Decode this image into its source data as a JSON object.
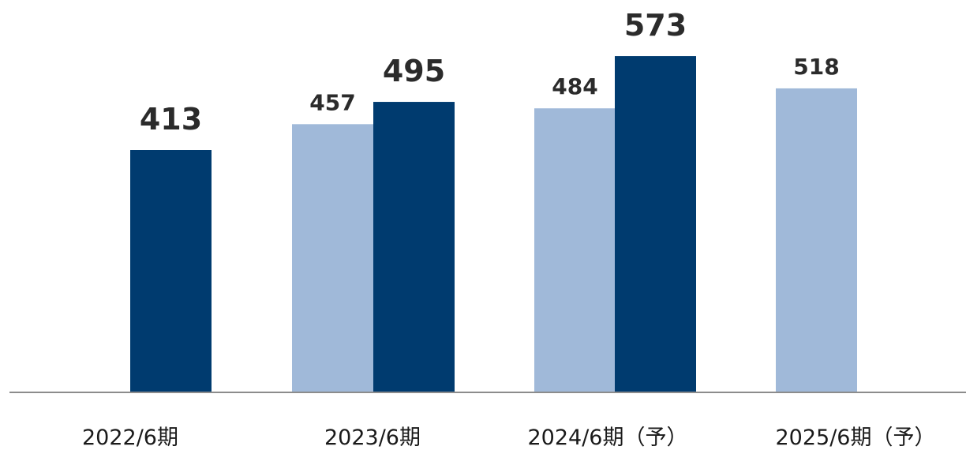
{
  "chart_data": {
    "type": "bar",
    "categories": [
      "2022/6期",
      "2023/6期",
      "2024/6期（予）",
      "2025/6期（予）"
    ],
    "series": [
      {
        "color": "#a0b9d9",
        "values": [
          null,
          457,
          484,
          518
        ]
      },
      {
        "color": "#003b6f",
        "values": [
          413,
          495,
          573,
          null
        ]
      }
    ],
    "data_labels": {
      "series_0": [
        "",
        "457",
        "484",
        "518"
      ],
      "series_1": [
        "413",
        "495",
        "573",
        ""
      ]
    },
    "ylim": [
      0,
      600
    ],
    "grid": false,
    "legend": "none",
    "xlabel": "",
    "ylabel": "",
    "title": "",
    "axis_color": "#8c8c8c"
  }
}
